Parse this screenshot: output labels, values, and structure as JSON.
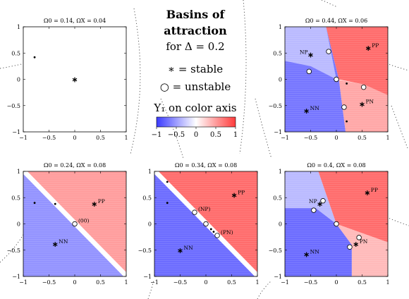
{
  "legend": {
    "title_line1": "Basins of",
    "title_line2": "attraction",
    "title_line3": "for Δ = 0.2",
    "stable_text": "∗ = stable",
    "unstable_text": "○ = unstable",
    "colorbar_label": "Y₁ on color axis",
    "colorbar_ticks": [
      "−1",
      "−0.5",
      "0",
      "0.5",
      "1"
    ],
    "colors": {
      "negative": "#3b3bff",
      "neutral": "#ffffff",
      "positive": "#ff3b3b"
    }
  },
  "chart_data": [
    {
      "type": "heatmap",
      "title": "Ω0 = 0.14, ΩX = 0.04",
      "xlim": [
        -1,
        1
      ],
      "ylim": [
        -1,
        1
      ],
      "xticks": [
        "−1",
        "−0.5",
        "0",
        "0.5",
        "1"
      ],
      "yticks": [
        "1",
        "0.5",
        "0",
        "−0.5",
        "−1"
      ],
      "regions": [],
      "stable": [
        {
          "x": 0,
          "y": 0,
          "label": ""
        }
      ],
      "unstable": [],
      "dots": [
        {
          "x": -0.78,
          "y": 0.42
        }
      ]
    },
    {
      "type": "heatmap",
      "title": "Ω0 = 0.44, ΩX = 0.06",
      "xlim": [
        -1,
        1
      ],
      "ylim": [
        -1,
        1
      ],
      "xticks": [
        "−1",
        "−0.5",
        "0",
        "0.5",
        "1"
      ],
      "yticks": [
        "1",
        "0.5",
        "0",
        "−0.5",
        "−1"
      ],
      "regions": [
        {
          "value": -0.7,
          "poly": [
            [
              -1,
              -1
            ],
            [
              0.18,
              -1
            ],
            [
              0.05,
              0
            ],
            [
              -0.2,
              1
            ],
            [
              -1,
              1
            ]
          ]
        },
        {
          "value": -0.35,
          "poly": [
            [
              -1,
              1
            ],
            [
              -1,
              0.35
            ],
            [
              -0.5,
              0.25
            ],
            [
              0,
              0
            ],
            [
              -0.2,
              1
            ]
          ]
        },
        {
          "value": 0.75,
          "poly": [
            [
              0.18,
              -1
            ],
            [
              1,
              -1
            ],
            [
              1,
              1
            ],
            [
              -0.2,
              1
            ],
            [
              0.05,
              0
            ],
            [
              0.55,
              -0.1
            ]
          ]
        },
        {
          "value": 0.45,
          "poly": [
            [
              0,
              0
            ],
            [
              0.55,
              -0.1
            ],
            [
              1,
              -0.3
            ],
            [
              1,
              -1
            ],
            [
              0.18,
              -1
            ],
            [
              0.05,
              0
            ]
          ]
        }
      ],
      "stable": [
        {
          "x": -0.5,
          "y": 0.47,
          "label": "NP"
        },
        {
          "x": 0.62,
          "y": 0.6,
          "label": "PP"
        },
        {
          "x": -0.58,
          "y": -0.6,
          "label": "NN"
        },
        {
          "x": 0.5,
          "y": -0.47,
          "label": "PN"
        }
      ],
      "unstable": [
        {
          "x": -0.15,
          "y": 0.53
        },
        {
          "x": -0.53,
          "y": 0.15
        },
        {
          "x": 0,
          "y": 0
        },
        {
          "x": 0.53,
          "y": -0.15
        },
        {
          "x": 0.15,
          "y": -0.53
        }
      ],
      "dots": [
        {
          "x": 0.2,
          "y": -0.08
        },
        {
          "x": 0.2,
          "y": -0.8
        },
        {
          "x": 0.53,
          "y": -0.15
        }
      ]
    },
    {
      "type": "heatmap",
      "title": "Ω0 = 0.24, ΩX = 0.08",
      "xlim": [
        -1,
        1
      ],
      "ylim": [
        -1,
        1
      ],
      "xticks": [
        "−1",
        "−0.5",
        "0",
        "0.5",
        "1"
      ],
      "yticks": [
        "1",
        "0.5",
        "0",
        "−0.5",
        "−1"
      ],
      "regions": [
        {
          "value": -0.55,
          "poly": [
            [
              -1,
              0.95
            ],
            [
              -1,
              -1
            ],
            [
              0.95,
              -1
            ]
          ]
        },
        {
          "value": 0.5,
          "poly": [
            [
              -0.92,
              1
            ],
            [
              1,
              1
            ],
            [
              1,
              -0.92
            ]
          ]
        }
      ],
      "separatrix": true,
      "stable": [
        {
          "x": 0.38,
          "y": 0.38,
          "label": "PP"
        },
        {
          "x": -0.38,
          "y": -0.38,
          "label": "NN"
        }
      ],
      "unstable": [
        {
          "x": 0,
          "y": 0,
          "label": "(00)"
        }
      ],
      "dots": [
        {
          "x": -0.78,
          "y": 0.4
        },
        {
          "x": -0.38,
          "y": 0.38
        }
      ]
    },
    {
      "type": "heatmap",
      "title": "Ω0 = 0.34, ΩX = 0.08",
      "xlim": [
        -1,
        1
      ],
      "ylim": [
        -1,
        1
      ],
      "xticks": [
        "−1",
        "−0.5",
        "0",
        "0.5",
        "1"
      ],
      "yticks": [
        "1",
        "0.5",
        "0",
        "−0.5",
        "−1"
      ],
      "regions": [
        {
          "value": -0.75,
          "poly": [
            [
              -1,
              0.95
            ],
            [
              -1,
              -1
            ],
            [
              0.95,
              -1
            ]
          ]
        },
        {
          "value": 0.75,
          "poly": [
            [
              -0.92,
              1
            ],
            [
              1,
              1
            ],
            [
              1,
              -0.92
            ]
          ]
        }
      ],
      "separatrix": true,
      "stable": [
        {
          "x": 0.55,
          "y": 0.55,
          "label": "PP"
        },
        {
          "x": -0.5,
          "y": -0.5,
          "label": "NN"
        }
      ],
      "unstable": [
        {
          "x": -0.22,
          "y": 0.22,
          "label": "(NP)"
        },
        {
          "x": 0,
          "y": 0,
          "label": ""
        },
        {
          "x": 0.22,
          "y": -0.22,
          "label": "(PN)"
        }
      ],
      "dots": [
        {
          "x": -0.75,
          "y": 0.8
        },
        {
          "x": -0.75,
          "y": 0.4
        },
        {
          "x": 0.1,
          "y": -0.1
        },
        {
          "x": 0.15,
          "y": -0.15
        }
      ]
    },
    {
      "type": "heatmap",
      "title": "Ω0 = 0.4, ΩX = 0.08",
      "xlim": [
        -1,
        1
      ],
      "ylim": [
        -1,
        1
      ],
      "xticks": [
        "−1",
        "−0.5",
        "0",
        "0.5",
        "1"
      ],
      "yticks": [
        "1",
        "0.5",
        "0",
        "−0.5",
        "−1"
      ],
      "regions": [
        {
          "value": -0.75,
          "poly": [
            [
              -1,
              -1
            ],
            [
              0.3,
              -1
            ],
            [
              0.3,
              -0.4
            ],
            [
              0,
              0
            ],
            [
              -0.4,
              0.3
            ],
            [
              -1,
              0.3
            ]
          ]
        },
        {
          "value": -0.35,
          "poly": [
            [
              -1,
              0.3
            ],
            [
              -0.4,
              0.3
            ],
            [
              0,
              0
            ],
            [
              -0.35,
              1
            ],
            [
              -1,
              1
            ]
          ]
        },
        {
          "value": 0.75,
          "poly": [
            [
              -0.35,
              1
            ],
            [
              1,
              1
            ],
            [
              1,
              -0.35
            ],
            [
              0,
              0
            ]
          ]
        },
        {
          "value": 0.35,
          "poly": [
            [
              0,
              0
            ],
            [
              1,
              -0.35
            ],
            [
              1,
              -1
            ],
            [
              0.3,
              -1
            ],
            [
              0.3,
              -0.4
            ]
          ]
        }
      ],
      "stable": [
        {
          "x": -0.32,
          "y": 0.38,
          "label": "NP"
        },
        {
          "x": 0.6,
          "y": 0.6,
          "label": "PP"
        },
        {
          "x": -0.58,
          "y": -0.58,
          "label": "NN"
        },
        {
          "x": 0.38,
          "y": -0.38,
          "label": "PN"
        }
      ],
      "unstable": [
        {
          "x": -0.26,
          "y": 0.44
        },
        {
          "x": -0.44,
          "y": 0.26
        },
        {
          "x": 0,
          "y": 0
        },
        {
          "x": 0.44,
          "y": -0.26
        },
        {
          "x": 0.26,
          "y": -0.44
        }
      ],
      "dots": []
    }
  ]
}
